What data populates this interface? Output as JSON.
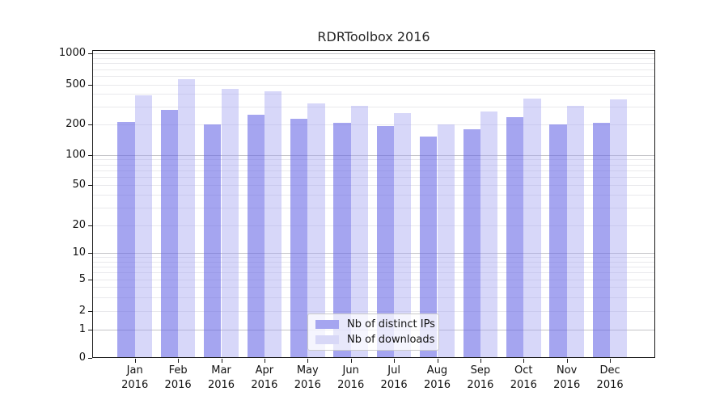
{
  "chart": {
    "title": "RDRToolbox 2016"
  },
  "chart_data": {
    "type": "bar",
    "title": "RDRToolbox 2016",
    "categories": [
      "Jan 2016",
      "Feb 2016",
      "Mar 2016",
      "Apr 2016",
      "May 2016",
      "Jun 2016",
      "Jul 2016",
      "Aug 2016",
      "Sep 2016",
      "Oct 2016",
      "Nov 2016",
      "Dec 2016"
    ],
    "series": [
      {
        "name": "Nb of distinct IPs",
        "color": "#a5a5f0",
        "fill_rgba": "rgba(100,100,230,0.58)",
        "values": [
          210,
          280,
          200,
          250,
          228,
          205,
          190,
          152,
          178,
          236,
          200,
          204
        ]
      },
      {
        "name": "Nb of downloads",
        "color": "#d8d8f7",
        "fill_rgba": "rgba(160,160,240,0.42)",
        "values": [
          390,
          560,
          452,
          428,
          322,
          305,
          256,
          198,
          270,
          360,
          303,
          355
        ]
      }
    ],
    "xlabel": "",
    "ylabel": "",
    "yscale": "log-like (symlog near zero)",
    "yticks": [
      1000,
      500,
      200,
      100,
      50,
      20,
      10,
      5,
      2,
      1,
      0
    ],
    "ylim": [
      0,
      1080
    ],
    "grid": "both",
    "legend_position": "lower center"
  }
}
